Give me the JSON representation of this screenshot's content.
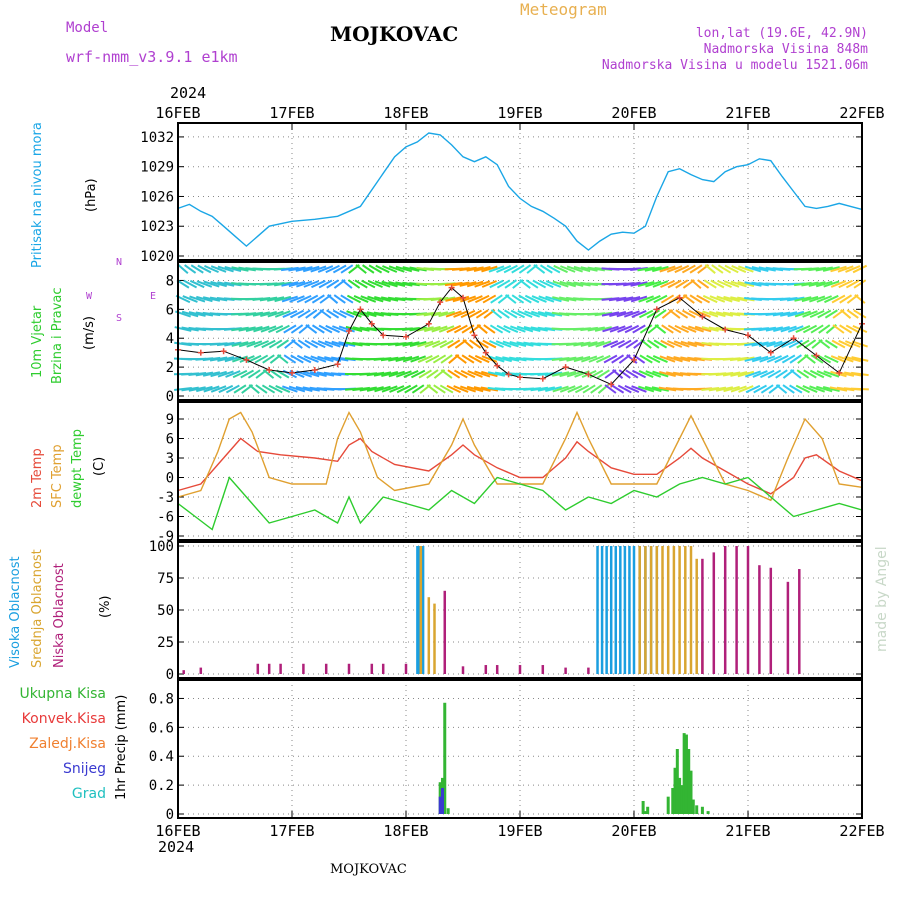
{
  "header": {
    "model_label": "Model",
    "model_name": "wrf-nmm_v3.9.1 e1km",
    "station": "MOJKOVAC",
    "product": "Meteogram",
    "coords": "lon,lat (19.6E, 42.9N)",
    "elevation": "Nadmorska Visina 848m",
    "model_elevation": "Nadmorska Visina u modelu 1521.06m",
    "year_top": "2024",
    "year_bottom": "2024",
    "footer_station": "MOJKOVAC",
    "credit": "made by Angel"
  },
  "colors": {
    "pressure": "#1aa6e6",
    "temp2m": "#e64a3a",
    "sfc": "#e0a030",
    "dewpt": "#2ecc2e",
    "high_cloud": "#1a9fe0",
    "mid_cloud": "#d9a530",
    "low_cloud": "#b0207a",
    "total_precip": "#33b533",
    "conv_precip": "#e83a3a",
    "frozen_precip": "#f08030",
    "snow": "#3a3ad0",
    "graupel": "#20c0c0",
    "purple_text": "#b040d0",
    "orange_text": "#e8b050"
  },
  "chart_data": [
    {
      "type": "line",
      "panel": "pressure",
      "ylabel_lines": [
        "Pritisak na nivou mora",
        "(hPa)"
      ],
      "x_categories": [
        "16FEB",
        "17FEB",
        "18FEB",
        "19FEB",
        "20FEB",
        "21FEB",
        "22FEB"
      ],
      "ylim": [
        1020,
        1033
      ],
      "yticks": [
        1020,
        1023,
        1026,
        1029,
        1032
      ],
      "grid": true,
      "series": [
        {
          "name": "",
          "x": [
            0,
            0.1,
            0.2,
            0.3,
            0.4,
            0.5,
            0.6,
            0.7,
            0.8,
            1.0,
            1.2,
            1.4,
            1.6,
            1.75,
            1.9,
            2.0,
            2.1,
            2.2,
            2.3,
            2.4,
            2.5,
            2.6,
            2.7,
            2.8,
            2.9,
            3.0,
            3.1,
            3.2,
            3.3,
            3.4,
            3.5,
            3.6,
            3.7,
            3.8,
            3.9,
            4.0,
            4.1,
            4.2,
            4.3,
            4.4,
            4.5,
            4.6,
            4.7,
            4.8,
            4.9,
            5.0,
            5.1,
            5.2,
            5.3,
            5.4,
            5.5,
            5.6,
            5.7,
            5.8,
            5.9,
            6.0
          ],
          "values": [
            1024.8,
            1025.2,
            1024.5,
            1024,
            1023,
            1022,
            1021,
            1022,
            1023,
            1023.5,
            1023.7,
            1024,
            1025,
            1027.5,
            1030,
            1031,
            1031.5,
            1032.4,
            1032.2,
            1031.2,
            1030,
            1029.5,
            1030,
            1029.2,
            1027,
            1025.8,
            1025,
            1024.5,
            1023.8,
            1023,
            1021.5,
            1020.6,
            1021.5,
            1022.2,
            1022.4,
            1022.3,
            1023,
            1026,
            1028.5,
            1028.8,
            1028.2,
            1027.7,
            1027.5,
            1028.5,
            1029,
            1029.2,
            1029.8,
            1029.6,
            1028,
            1026.5,
            1025,
            1024.8,
            1025,
            1025.3,
            1025,
            1024.7
          ]
        }
      ]
    },
    {
      "type": "line",
      "panel": "wind",
      "ylabel_lines": [
        "10m Vjetar",
        "Brzina i Pravac",
        "(m/s)"
      ],
      "compass": {
        "n": "N",
        "s": "S",
        "w": "W",
        "e": "E"
      },
      "ylim": [
        0,
        9
      ],
      "yticks": [
        0,
        2,
        4,
        6,
        8
      ],
      "series": [
        {
          "name": "",
          "x": [
            0,
            0.2,
            0.4,
            0.6,
            0.8,
            1.0,
            1.2,
            1.4,
            1.5,
            1.6,
            1.7,
            1.8,
            2.0,
            2.2,
            2.3,
            2.4,
            2.5,
            2.6,
            2.7,
            2.8,
            2.9,
            3.0,
            3.2,
            3.4,
            3.6,
            3.8,
            4.0,
            4.2,
            4.4,
            4.6,
            4.8,
            5.0,
            5.2,
            5.4,
            5.6,
            5.8,
            6.0
          ],
          "values": [
            3.2,
            3.0,
            3.1,
            2.5,
            1.8,
            1.6,
            1.8,
            2.2,
            4.5,
            6.0,
            5.0,
            4.2,
            4.1,
            5.0,
            6.5,
            7.5,
            6.8,
            4.2,
            3.0,
            2.1,
            1.5,
            1.3,
            1.2,
            2.0,
            1.5,
            0.8,
            2.5,
            6.0,
            6.8,
            5.5,
            4.6,
            4.2,
            3.0,
            4.0,
            2.8,
            1.6,
            5.0
          ]
        }
      ]
    },
    {
      "type": "line",
      "panel": "temperature",
      "ylabel_lines": [
        "2m Temp",
        "SFC Temp",
        "dewpt Temp",
        "(C)"
      ],
      "ylim": [
        -9,
        11
      ],
      "yticks": [
        -9,
        -6,
        -3,
        0,
        3,
        6,
        9
      ],
      "series": [
        {
          "name": "2m Temp",
          "x": [
            0,
            0.2,
            0.4,
            0.5,
            0.55,
            0.7,
            0.9,
            1.2,
            1.4,
            1.5,
            1.6,
            1.7,
            1.9,
            2.2,
            2.4,
            2.5,
            2.6,
            2.8,
            3.0,
            3.2,
            3.4,
            3.5,
            3.6,
            3.8,
            4.0,
            4.2,
            4.4,
            4.5,
            4.6,
            4.8,
            5.0,
            5.2,
            5.4,
            5.5,
            5.6,
            5.8,
            6.0
          ],
          "values": [
            -2,
            -1,
            3,
            5,
            6,
            4,
            3.5,
            3,
            2.5,
            5,
            6,
            4,
            2,
            1,
            3.5,
            5,
            3.5,
            1.5,
            0,
            0,
            3,
            5.5,
            4,
            1.5,
            0.5,
            0.5,
            3,
            4.5,
            3,
            1,
            -1,
            -2.5,
            0,
            3,
            3.5,
            1,
            -0.5
          ]
        },
        {
          "name": "SFC Temp",
          "x": [
            0,
            0.2,
            0.35,
            0.45,
            0.55,
            0.65,
            0.8,
            1.0,
            1.3,
            1.4,
            1.5,
            1.6,
            1.75,
            1.9,
            2.2,
            2.4,
            2.5,
            2.6,
            2.8,
            3.0,
            3.2,
            3.4,
            3.5,
            3.6,
            3.8,
            4.0,
            4.2,
            4.4,
            4.5,
            4.6,
            4.8,
            5.0,
            5.2,
            5.35,
            5.5,
            5.65,
            5.8,
            6.0
          ],
          "values": [
            -3,
            -2,
            4,
            9,
            10,
            7,
            0,
            -1,
            -1,
            6,
            10,
            7,
            0,
            -2,
            -1,
            5,
            9,
            5,
            -1,
            -1,
            -1,
            6,
            10,
            6,
            -1,
            -1,
            -1,
            6,
            9.5,
            6,
            -1,
            -2,
            -3.5,
            3,
            9,
            6,
            -1,
            -1.5
          ]
        },
        {
          "name": "dewpt Temp",
          "x": [
            0,
            0.15,
            0.3,
            0.45,
            0.6,
            0.8,
            1.0,
            1.2,
            1.4,
            1.5,
            1.6,
            1.8,
            2.0,
            2.2,
            2.4,
            2.6,
            2.8,
            3.0,
            3.2,
            3.4,
            3.6,
            3.8,
            4.0,
            4.2,
            4.4,
            4.6,
            4.8,
            5.0,
            5.2,
            5.4,
            5.6,
            5.8,
            6.0
          ],
          "values": [
            -4,
            -6,
            -8,
            0,
            -3,
            -7,
            -6,
            -5,
            -7,
            -3,
            -7,
            -3,
            -4,
            -5,
            -2,
            -4,
            0,
            -1,
            -2,
            -5,
            -3,
            -4,
            -2,
            -3,
            -1,
            0,
            -1,
            0,
            -3,
            -6,
            -5,
            -4,
            -5
          ]
        }
      ]
    },
    {
      "type": "bar",
      "panel": "clouds",
      "ylabel_lines": [
        "Visoka Oblacnost",
        "Srednja Oblacnost",
        "Niska Oblacnost",
        "(%)"
      ],
      "ylim": [
        0,
        100
      ],
      "yticks": [
        0,
        25,
        50,
        75,
        100
      ],
      "series": [
        {
          "name": "Visoka Oblacnost",
          "x": [
            2.1,
            2.12,
            2.15,
            3.68,
            3.72,
            3.76,
            3.8,
            3.84,
            3.88,
            3.92,
            3.96,
            4.0,
            4.05,
            4.1,
            4.15,
            4.2
          ],
          "values": [
            100,
            100,
            100,
            100,
            100,
            100,
            100,
            100,
            100,
            100,
            100,
            100,
            100,
            100,
            100,
            100
          ]
        },
        {
          "name": "Srednja Oblacnost",
          "x": [
            2.13,
            2.2,
            2.25,
            4.05,
            4.1,
            4.15,
            4.2,
            4.25,
            4.3,
            4.35,
            4.4,
            4.45,
            4.5,
            4.55,
            4.6
          ],
          "values": [
            100,
            60,
            55,
            100,
            100,
            100,
            100,
            100,
            100,
            100,
            100,
            100,
            100,
            90,
            25
          ]
        },
        {
          "name": "Niska Oblacnost",
          "x": [
            0.05,
            0.2,
            0.7,
            0.8,
            0.9,
            1.1,
            1.3,
            1.5,
            1.7,
            1.8,
            2.0,
            2.34,
            2.5,
            2.7,
            2.8,
            3.0,
            3.2,
            3.4,
            3.6,
            4.6,
            4.7,
            4.8,
            4.9,
            5.0,
            5.1,
            5.2,
            5.35,
            5.45
          ],
          "values": [
            3,
            5,
            8,
            8,
            8,
            8,
            8,
            8,
            8,
            8,
            8,
            65,
            6,
            7,
            7,
            7,
            7,
            5,
            5,
            90,
            95,
            100,
            100,
            100,
            85,
            83,
            72,
            82
          ]
        }
      ]
    },
    {
      "type": "bar",
      "panel": "precip",
      "ylabel_lines": [
        "1hr Precip (mm)"
      ],
      "legend": [
        "Ukupna Kisa",
        "Konvek.Kisa",
        "Zaledj.Kisa",
        "Snijeg",
        "Grad"
      ],
      "ylim": [
        0,
        0.9
      ],
      "yticks": [
        0,
        0.2,
        0.4,
        0.6,
        0.8
      ],
      "x_categories": [
        "16FEB",
        "17FEB",
        "18FEB",
        "19FEB",
        "20FEB",
        "21FEB",
        "22FEB"
      ],
      "series": [
        {
          "name": "Ukupna Kisa",
          "x": [
            2.3,
            2.32,
            2.34,
            2.37,
            4.08,
            4.1,
            4.12,
            4.3,
            4.34,
            4.36,
            4.38,
            4.4,
            4.42,
            4.44,
            4.46,
            4.48,
            4.5,
            4.52,
            4.55,
            4.6,
            4.65
          ],
          "values": [
            0.22,
            0.25,
            0.77,
            0.04,
            0.09,
            0.02,
            0.05,
            0.12,
            0.18,
            0.32,
            0.45,
            0.25,
            0.2,
            0.56,
            0.55,
            0.45,
            0.3,
            0.1,
            0.06,
            0.05,
            0.02
          ]
        },
        {
          "name": "Snijeg",
          "x": [
            2.3,
            2.32
          ],
          "values": [
            0.12,
            0.18
          ]
        }
      ]
    }
  ]
}
